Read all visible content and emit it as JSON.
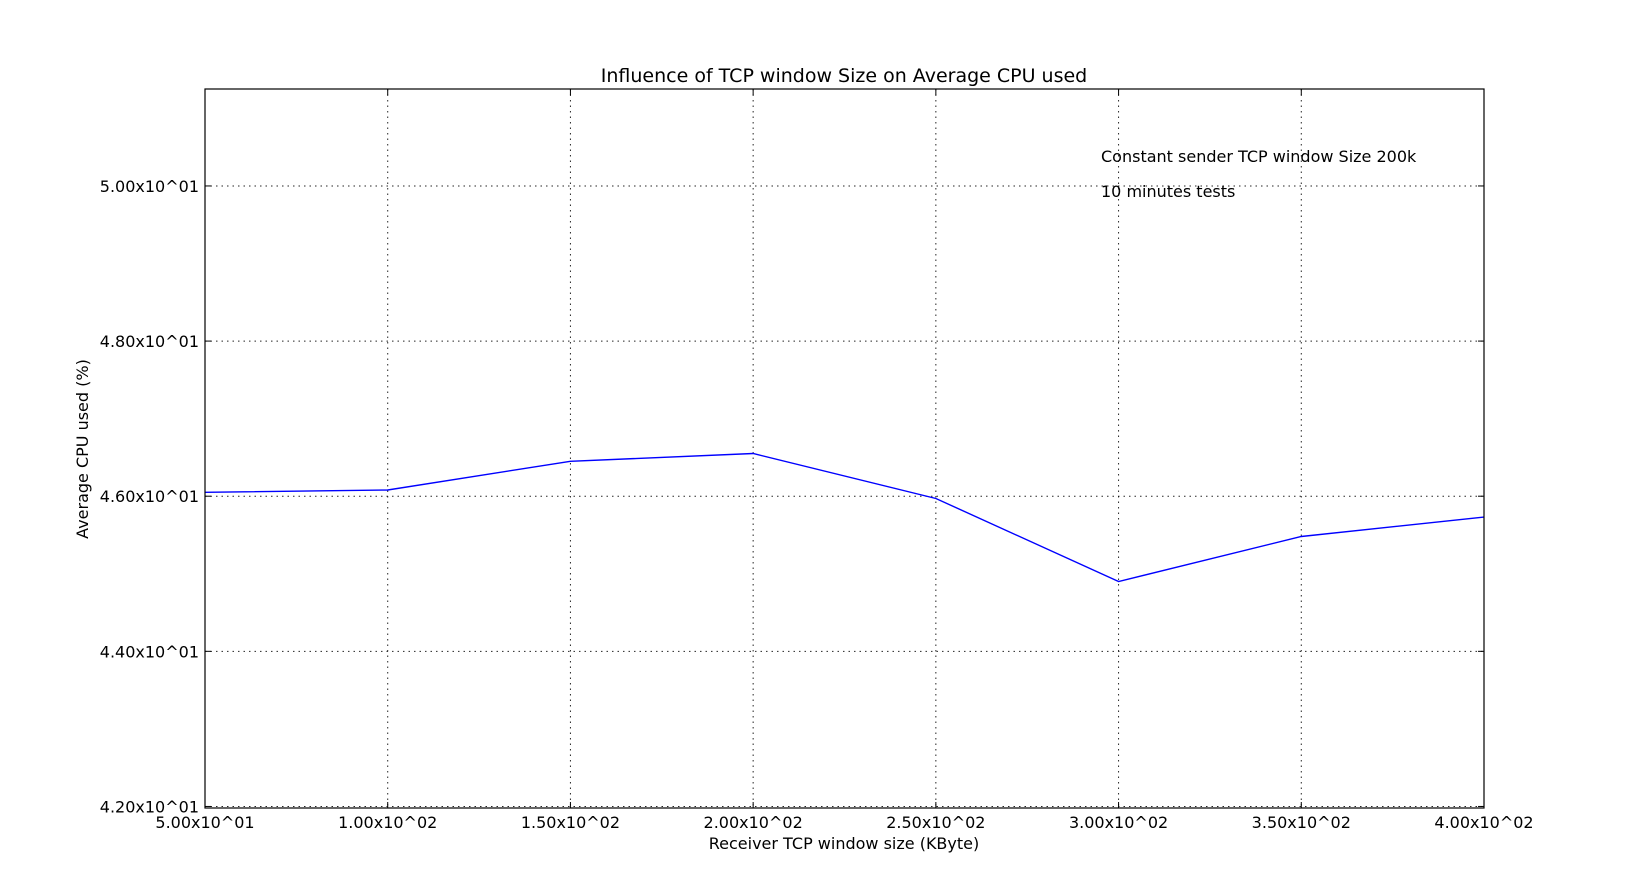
{
  "chart_data": {
    "type": "line",
    "title": "Influence of TCP window Size on Average CPU used",
    "xlabel": "Receiver TCP window size (KByte)",
    "ylabel": "Average CPU used (%)",
    "xlim": [
      50,
      400
    ],
    "ylim": [
      41.98,
      51.25
    ],
    "grid": true,
    "x_ticks": [
      50,
      100,
      150,
      200,
      250,
      300,
      350,
      400
    ],
    "x_tick_labels": [
      "5.00x10^01",
      "1.00x10^02",
      "1.50x10^02",
      "2.00x10^02",
      "2.50x10^02",
      "3.00x10^02",
      "3.50x10^02",
      "4.00x10^02"
    ],
    "y_ticks": [
      42,
      44,
      46,
      48,
      50
    ],
    "y_tick_labels": [
      "4.20x10^01",
      "4.40x10^01",
      "4.60x10^01",
      "4.80x10^01",
      "5.00x10^01"
    ],
    "series": [
      {
        "x": [
          50,
          100,
          150,
          200,
          250,
          300,
          350,
          400
        ],
        "values": [
          46.05,
          46.08,
          46.45,
          46.55,
          45.97,
          44.9,
          45.48,
          45.73
        ],
        "color": "#0000ff"
      }
    ],
    "annotations": [
      "Constant sender TCP window Size 200k",
      "10 minutes tests"
    ]
  }
}
